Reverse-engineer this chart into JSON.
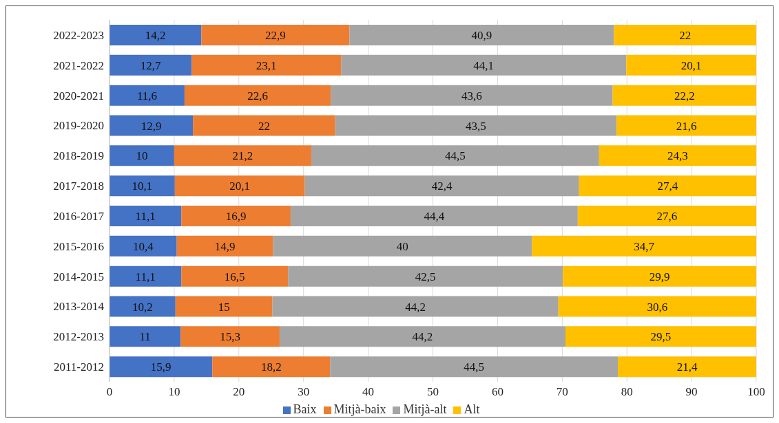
{
  "chart_data": {
    "type": "bar",
    "orientation": "horizontal",
    "stacked": true,
    "categories": [
      "2022-2023",
      "2021-2022",
      "2020-2021",
      "2019-2020",
      "2018-2019",
      "2017-2018",
      "2016-2017",
      "2015-2016",
      "2014-2015",
      "2013-2014",
      "2012-2013",
      "2011-2012"
    ],
    "series": [
      {
        "name": "Baix",
        "color": "#4472c4",
        "values": [
          14.2,
          12.7,
          11.6,
          12.9,
          10,
          10.1,
          11.1,
          10.4,
          11.1,
          10.2,
          11,
          15.9
        ],
        "value_labels": [
          "14,2",
          "12,7",
          "11,6",
          "12,9",
          "10",
          "10,1",
          "11,1",
          "10,4",
          "11,1",
          "10,2",
          "11",
          "15,9"
        ]
      },
      {
        "name": "Mitjà-baix",
        "color": "#ed7d31",
        "values": [
          22.9,
          23.1,
          22.6,
          22,
          21.2,
          20.1,
          16.9,
          14.9,
          16.5,
          15,
          15.3,
          18.2
        ],
        "value_labels": [
          "22,9",
          "23,1",
          "22,6",
          "22",
          "21,2",
          "20,1",
          "16,9",
          "14,9",
          "16,5",
          "15",
          "15,3",
          "18,2"
        ]
      },
      {
        "name": "Mitjà-alt",
        "color": "#a5a5a5",
        "values": [
          40.9,
          44.1,
          43.6,
          43.5,
          44.5,
          42.4,
          44.4,
          40,
          42.5,
          44.2,
          44.2,
          44.5
        ],
        "value_labels": [
          "40,9",
          "44,1",
          "43,6",
          "43,5",
          "44,5",
          "42,4",
          "44,4",
          "40",
          "42,5",
          "44,2",
          "44,2",
          "44,5"
        ]
      },
      {
        "name": "Alt",
        "color": "#ffc000",
        "values": [
          22,
          20.1,
          22.2,
          21.6,
          24.3,
          27.4,
          27.6,
          34.7,
          29.9,
          30.6,
          29.5,
          21.4
        ],
        "value_labels": [
          "22",
          "20,1",
          "22,2",
          "21,6",
          "24,3",
          "27,4",
          "27,6",
          "34,7",
          "29,9",
          "30,6",
          "29,5",
          "21,4"
        ]
      }
    ],
    "xlim": [
      0,
      100
    ],
    "xticks": [
      0,
      10,
      20,
      30,
      40,
      50,
      60,
      70,
      80,
      90,
      100
    ],
    "grid": "x",
    "legend": "bottom"
  }
}
